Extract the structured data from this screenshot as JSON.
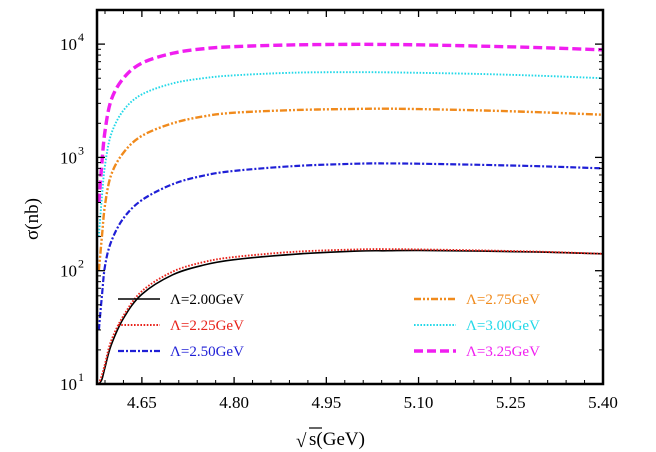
{
  "chart_data": {
    "type": "line",
    "xlabel": "s(GeV)",
    "xlabel_sqrt_symbol": "√",
    "ylabel": "σ(nb)",
    "x_scale": "linear",
    "y_scale": "log",
    "xlim": [
      4.577,
      5.4
    ],
    "ylim": [
      10,
      20000
    ],
    "x_ticks": [
      4.65,
      4.8,
      4.95,
      5.1,
      5.25,
      5.4
    ],
    "x_tick_labels": [
      "4.65",
      "4.80",
      "4.95",
      "5.10",
      "5.25",
      "5.40"
    ],
    "y_ticks": [
      {
        "value": 10,
        "base": "10",
        "exp": "1"
      },
      {
        "value": 100,
        "base": "10",
        "exp": "2"
      },
      {
        "value": 1000,
        "base": "10",
        "exp": "3"
      },
      {
        "value": 10000,
        "base": "10",
        "exp": "4"
      }
    ],
    "grid": false,
    "legend_placement": "bottom, two columns",
    "series": [
      {
        "name": "Λ=2.00GeV",
        "color": "#000000",
        "style": "solid",
        "x": [
          4.58,
          4.585,
          4.59,
          4.6,
          4.62,
          4.65,
          4.7,
          4.75,
          4.8,
          4.9,
          5.0,
          5.05,
          5.1,
          5.2,
          5.3,
          5.4
        ],
        "y": [
          10,
          11,
          14,
          22,
          38,
          62,
          92,
          112,
          125,
          140,
          149,
          150,
          151,
          149,
          146,
          141
        ]
      },
      {
        "name": "Λ=2.25GeV",
        "color": "#e8231b",
        "style": "dotted",
        "x": [
          4.58,
          4.585,
          4.59,
          4.6,
          4.62,
          4.65,
          4.7,
          4.75,
          4.8,
          4.9,
          5.0,
          5.05,
          5.1,
          5.2,
          5.3,
          5.4
        ],
        "y": [
          10,
          12,
          15,
          24,
          40,
          66,
          98,
          119,
          132,
          147,
          154,
          155,
          154,
          151,
          147,
          141
        ]
      },
      {
        "name": "Λ=2.50GeV",
        "color": "#1f1fd6",
        "style": "dashdot",
        "x": [
          4.58,
          4.585,
          4.59,
          4.6,
          4.62,
          4.65,
          4.7,
          4.75,
          4.8,
          4.9,
          5.0,
          5.05,
          5.1,
          5.2,
          5.3,
          5.4
        ],
        "y": [
          30,
          60,
          110,
          180,
          290,
          420,
          580,
          690,
          760,
          840,
          880,
          885,
          880,
          860,
          835,
          800
        ]
      },
      {
        "name": "Λ=2.75GeV",
        "color": "#f08a1c",
        "style": "dashdotdot",
        "x": [
          4.58,
          4.585,
          4.59,
          4.6,
          4.62,
          4.65,
          4.7,
          4.75,
          4.8,
          4.9,
          5.0,
          5.05,
          5.1,
          5.2,
          5.3,
          5.4
        ],
        "y": [
          100,
          200,
          380,
          700,
          1100,
          1550,
          2000,
          2300,
          2480,
          2620,
          2680,
          2690,
          2670,
          2600,
          2500,
          2380
        ]
      },
      {
        "name": "Λ=3.00GeV",
        "color": "#22d8e8",
        "style": "dotted",
        "x": [
          4.58,
          4.585,
          4.59,
          4.6,
          4.62,
          4.65,
          4.7,
          4.75,
          4.8,
          4.9,
          5.0,
          5.05,
          5.1,
          5.2,
          5.3,
          5.4
        ],
        "y": [
          200,
          450,
          850,
          1600,
          2600,
          3600,
          4500,
          5000,
          5300,
          5600,
          5650,
          5630,
          5580,
          5450,
          5250,
          5000
        ]
      },
      {
        "name": "Λ=3.25GeV",
        "color": "#f01ef0",
        "style": "dashed",
        "x": [
          4.58,
          4.585,
          4.59,
          4.6,
          4.62,
          4.65,
          4.7,
          4.75,
          4.8,
          4.9,
          5.0,
          5.05,
          5.1,
          5.2,
          5.3,
          5.4
        ],
        "y": [
          400,
          900,
          1700,
          3200,
          5000,
          6800,
          8300,
          9100,
          9500,
          9850,
          9950,
          9920,
          9850,
          9600,
          9300,
          8900
        ]
      }
    ]
  }
}
